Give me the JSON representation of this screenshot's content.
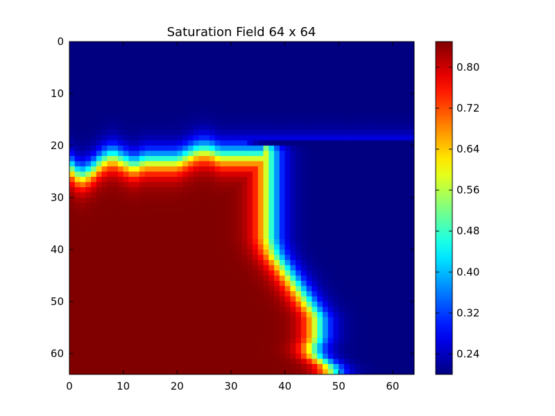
{
  "chart_data": {
    "type": "heatmap",
    "title": "Saturation Field 64 x 64",
    "xlabel": "",
    "ylabel": "",
    "colormap": "jet",
    "grid": false,
    "xlim": [
      0,
      64
    ],
    "ylim": [
      64,
      0
    ],
    "x_ticks": [
      "0",
      "10",
      "20",
      "30",
      "40",
      "50",
      "60"
    ],
    "y_ticks": [
      "0",
      "10",
      "20",
      "30",
      "40",
      "50",
      "60"
    ],
    "colorbar": {
      "vmin": 0.2,
      "vmax": 0.85,
      "ticks": [
        "0.24",
        "0.32",
        "0.40",
        "0.48",
        "0.56",
        "0.64",
        "0.72",
        "0.80"
      ]
    },
    "grid_size": [
      64,
      64
    ],
    "front_profile": {
      "description_rows": [
        0,
        17,
        19,
        20,
        21,
        22,
        23,
        24,
        25,
        26,
        27,
        28,
        30,
        32,
        35,
        38,
        41,
        44,
        47,
        50,
        53,
        55,
        57,
        59,
        61,
        62,
        64
      ],
      "front_column": [
        0,
        0,
        24,
        36,
        37,
        37,
        37,
        37,
        37,
        37,
        37,
        37,
        37,
        37,
        37,
        37,
        38,
        40,
        42,
        44,
        46,
        46,
        46,
        45,
        46,
        48,
        49
      ],
      "top_front_columns": [
        0,
        2,
        4,
        6,
        8,
        10,
        12,
        14,
        16,
        18,
        20,
        22,
        24,
        26,
        28,
        30,
        32,
        34,
        36
      ],
      "top_front_rows": [
        24,
        26,
        25,
        23,
        22,
        23,
        24,
        23,
        23,
        23,
        23,
        22,
        21,
        21,
        22,
        22,
        22,
        22,
        22
      ],
      "value_inside": 0.85,
      "value_outside": 0.2,
      "transition_width_cells": 2.5
    }
  }
}
